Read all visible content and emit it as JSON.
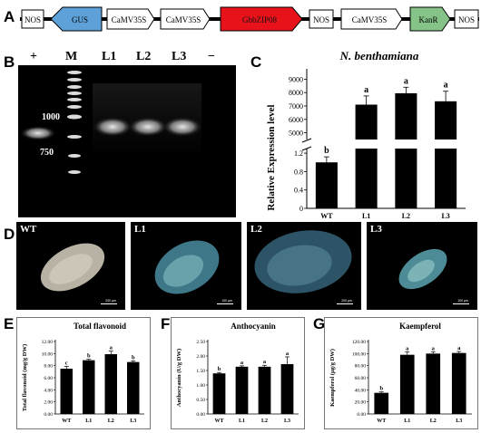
{
  "panels": {
    "a": "A",
    "b": "B",
    "c": "C",
    "d": "D",
    "e": "E",
    "f": "F",
    "g": "G"
  },
  "construct": {
    "elements": [
      {
        "label": "NOS",
        "kind": "box"
      },
      {
        "label": "GUS",
        "kind": "arrow-left",
        "color": "#5ea1d9"
      },
      {
        "label": "CaMV35S",
        "kind": "arrow-right"
      },
      {
        "label": "CaMV35S",
        "kind": "arrow-right"
      },
      {
        "label": "GbbZIP08",
        "kind": "arrow-right",
        "color": "#e8121a"
      },
      {
        "label": "NOS",
        "kind": "box"
      },
      {
        "label": "CaMV35S",
        "kind": "arrow-right"
      },
      {
        "label": "KanR",
        "kind": "arrow-right",
        "color": "#86c389"
      },
      {
        "label": "NOS",
        "kind": "box"
      }
    ]
  },
  "gel": {
    "lanes": [
      "+",
      "M",
      "L1",
      "L2",
      "L3",
      "−"
    ],
    "markers": [
      "1000",
      "750"
    ]
  },
  "colors": {
    "bar": "#000000",
    "gus": "#5ea1d9",
    "gene": "#e8121a",
    "kanr": "#86c389"
  },
  "leaves": [
    {
      "label": "WT",
      "scale": "200 μm"
    },
    {
      "label": "L1",
      "scale": "100 μm"
    },
    {
      "label": "L2",
      "scale": "200 μm"
    },
    {
      "label": "L3",
      "scale": "100 μm"
    }
  ],
  "chart_data": [
    {
      "id": "C",
      "type": "bar",
      "title": "N. benthamiana",
      "ylabel": "Relative Expression level",
      "categories": [
        "WT",
        "L1",
        "L2",
        "L3"
      ],
      "values": [
        1.0,
        7100,
        7950,
        7350
      ],
      "errors": [
        0.12,
        650,
        450,
        750
      ],
      "significance": [
        "b",
        "a",
        "a",
        "a"
      ],
      "axis_break": true,
      "lower_ticks": [
        "0",
        "0.4",
        "0.8",
        "1.2"
      ],
      "upper_ticks": [
        "5000",
        "6000",
        "7000",
        "8000",
        "9000"
      ],
      "ylim_lower": [
        0,
        1.3
      ],
      "ylim_upper": [
        4500,
        9500
      ]
    },
    {
      "id": "E",
      "type": "bar",
      "title": "Total flavonoid",
      "ylabel": "Total flavonoid (mg/g DW)",
      "categories": [
        "WT",
        "L1",
        "L2",
        "L3"
      ],
      "values": [
        7.5,
        8.9,
        9.9,
        8.6
      ],
      "errors": [
        0.4,
        0.15,
        0.5,
        0.2
      ],
      "significance": [
        "c",
        "b",
        "a",
        "b"
      ],
      "ylim": [
        0,
        12
      ],
      "yticks": [
        "0.00",
        "2.00",
        "4.00",
        "6.00",
        "8.00",
        "10.00",
        "12.00"
      ]
    },
    {
      "id": "F",
      "type": "bar",
      "title": "Anthocyanin",
      "ylabel": "Anthocyanin (U/g DW)",
      "categories": [
        "WT",
        "L1",
        "L2",
        "L3"
      ],
      "values": [
        1.4,
        1.63,
        1.63,
        1.72
      ],
      "errors": [
        0.03,
        0.03,
        0.05,
        0.25
      ],
      "significance": [
        "b",
        "a",
        "a",
        "a"
      ],
      "ylim": [
        0,
        2.5
      ],
      "yticks": [
        "0.00",
        "0.50",
        "1.00",
        "1.50",
        "2.00",
        "2.50"
      ]
    },
    {
      "id": "G",
      "type": "bar",
      "title": "Kaempferol",
      "ylabel": "Kaempferol (μg/g DW)",
      "categories": [
        "WT",
        "L1",
        "L2",
        "L3"
      ],
      "values": [
        35,
        98,
        100,
        101
      ],
      "errors": [
        1.5,
        5,
        3,
        2.5
      ],
      "significance": [
        "b",
        "a",
        "a",
        "a"
      ],
      "ylim": [
        0,
        120
      ],
      "yticks": [
        "0.00",
        "20.00",
        "40.00",
        "60.00",
        "80.00",
        "100.00",
        "120.00"
      ]
    }
  ]
}
